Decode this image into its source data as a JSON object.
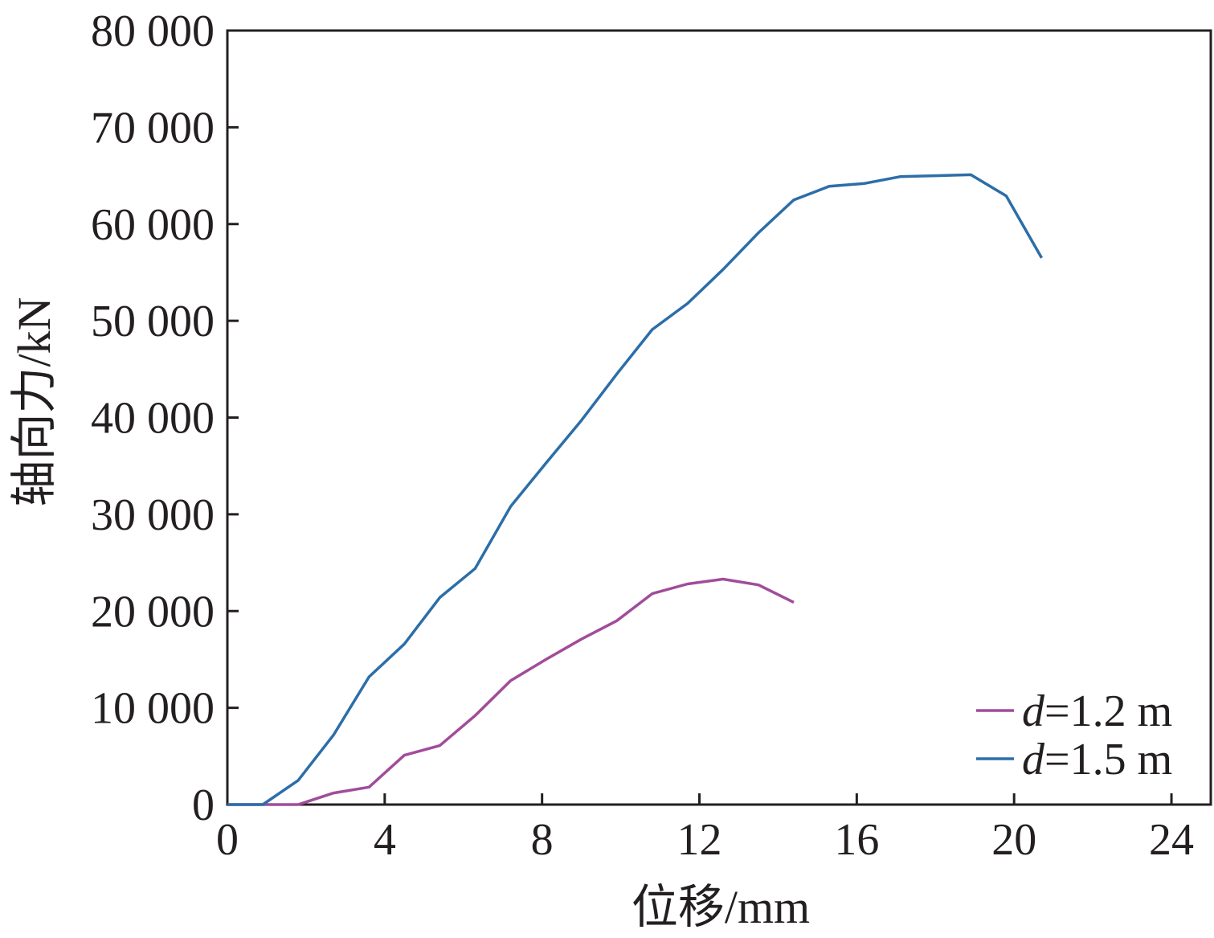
{
  "chart_data": {
    "type": "line",
    "xlabel": "位移/mm",
    "ylabel": "轴向力/kN",
    "xlim": [
      0,
      25
    ],
    "ylim": [
      0,
      80000
    ],
    "x_ticks": [
      0,
      4,
      8,
      12,
      16,
      20,
      24
    ],
    "x_tick_labels": [
      "0",
      "4",
      "8",
      "12",
      "16",
      "20",
      "24"
    ],
    "y_ticks": [
      0,
      10000,
      20000,
      30000,
      40000,
      50000,
      60000,
      70000,
      80000
    ],
    "y_tick_labels": [
      "0",
      "10 000",
      "20 000",
      "30 000",
      "40 000",
      "50 000",
      "60 000",
      "70 000",
      "80 000"
    ],
    "grid": false,
    "legend_position": "bottom-right",
    "series": [
      {
        "name": "d=1.2 m",
        "name_italic": "d",
        "name_rest": "=1.2 m",
        "color": "#a14c9b",
        "x": [
          0,
          1.8,
          2.7,
          3.6,
          4.5,
          5.4,
          6.3,
          7.2,
          8.1,
          9.0,
          9.9,
          10.8,
          11.7,
          12.6,
          13.5,
          14.4
        ],
        "y": [
          0,
          0,
          1200,
          1800,
          5100,
          6100,
          9200,
          12800,
          15000,
          17100,
          19000,
          21800,
          22800,
          23300,
          22700,
          20900
        ]
      },
      {
        "name": "d=1.5 m",
        "name_italic": "d",
        "name_rest": "=1.5 m",
        "color": "#2c6ea8",
        "x": [
          0,
          0.9,
          1.8,
          2.7,
          3.6,
          4.5,
          5.4,
          6.3,
          7.2,
          8.1,
          9.0,
          9.9,
          10.8,
          11.7,
          12.6,
          13.5,
          14.4,
          15.3,
          16.2,
          17.1,
          18.0,
          18.9,
          19.8,
          20.7
        ],
        "y": [
          0,
          0,
          2500,
          7200,
          13200,
          16600,
          21400,
          24400,
          30800,
          35300,
          39700,
          44500,
          49100,
          51800,
          55300,
          59100,
          62500,
          63900,
          64200,
          64900,
          65000,
          65100,
          62900,
          56500
        ]
      }
    ]
  }
}
